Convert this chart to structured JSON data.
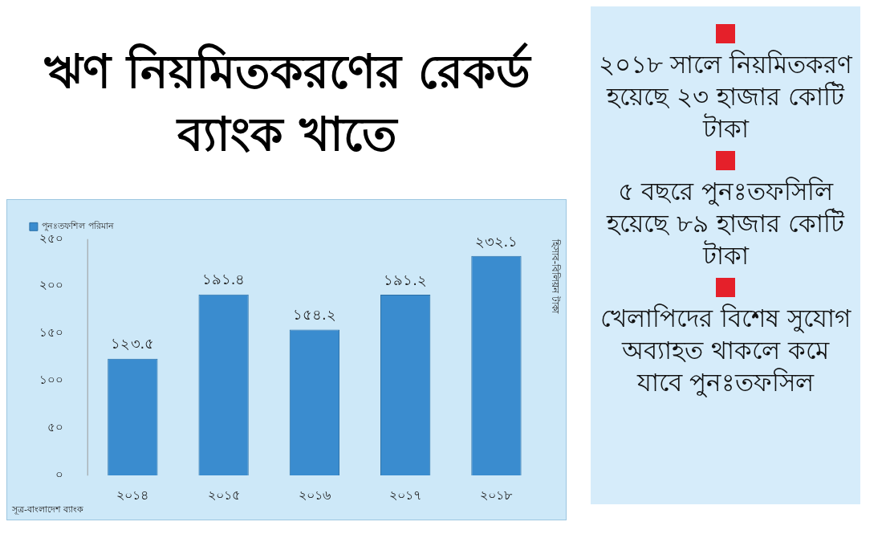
{
  "chart_data": [
    {
      "type": "bar",
      "title": "ঋণ নিয়মিতকরণের রেকর্ড ব্যাংক খাতে",
      "ylabel": "হিসাব-বিলিয়ন টাকা",
      "categories": [
        "২০১৪",
        "২০১৫",
        "২০১৬",
        "২০১৭",
        "২০১৮"
      ],
      "series": [
        {
          "name": "পুনঃতফশিল পরিমান",
          "color": "#3a8ccf",
          "values": [
            123.5,
            191.4,
            154.2,
            191.2,
            232.1
          ],
          "value_labels": [
            "১২৩.৫",
            "১৯১.৪",
            "১৫৪.২",
            "১৯১.২",
            "২৩২.১"
          ]
        }
      ],
      "ylim": [
        0,
        250
      ],
      "yticks": [
        {
          "value": 0,
          "label": "০"
        },
        {
          "value": 50,
          "label": "৫০"
        },
        {
          "value": 100,
          "label": "১০০"
        },
        {
          "value": 150,
          "label": "১৫০"
        },
        {
          "value": 200,
          "label": "২০০"
        },
        {
          "value": 250,
          "label": "২৫০"
        }
      ],
      "grid": false,
      "legend": "top left",
      "annotations": [
        "সূত্র-বাংলাদেশ ব্যাংক"
      ]
    },
    {
      "type": "other",
      "annotations": [
        "২০১৮ সালে নিয়মিতকরণ হয়েছে ২৩ হাজার কোটি টাকা",
        "৫ বছরে পুনঃতফসিলি হয়েছে ৮৯ হাজার কোটি টাকা",
        "খেলাপিদের বিশেষ সুযোগ অব্যাহত থাকলে কমে যাবে পুনঃতফসিল"
      ]
    }
  ]
}
